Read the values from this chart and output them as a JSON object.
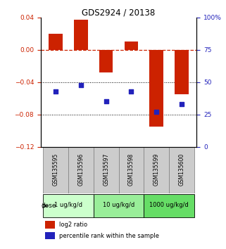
{
  "title": "GDS2924 / 20138",
  "samples": [
    "GSM135595",
    "GSM135596",
    "GSM135597",
    "GSM135598",
    "GSM135599",
    "GSM135600"
  ],
  "log2_ratio": [
    0.02,
    0.037,
    -0.028,
    0.01,
    -0.095,
    -0.055
  ],
  "percentile_rank": [
    43,
    48,
    35,
    43,
    27,
    33
  ],
  "dose_groups": [
    {
      "label": "1 ug/kg/d",
      "indices": [
        0,
        1
      ],
      "color": "#ccffcc"
    },
    {
      "label": "10 ug/kg/d",
      "indices": [
        2,
        3
      ],
      "color": "#99ee99"
    },
    {
      "label": "1000 ug/kg/d",
      "indices": [
        4,
        5
      ],
      "color": "#66dd66"
    }
  ],
  "left_ylim": [
    -0.12,
    0.04
  ],
  "left_yticks": [
    0.04,
    0.0,
    -0.04,
    -0.08,
    -0.12
  ],
  "right_ylim": [
    0,
    100
  ],
  "right_yticks": [
    100,
    75,
    50,
    25,
    0
  ],
  "right_yticklabels": [
    "100%",
    "75",
    "50",
    "25",
    "0"
  ],
  "bar_color": "#cc2200",
  "dot_color": "#2222bb",
  "hline_y": 0.0,
  "dotted_lines": [
    -0.04,
    -0.08
  ],
  "bar_width": 0.55,
  "label_box_color": "#cccccc",
  "label_box_edge": "#888888"
}
